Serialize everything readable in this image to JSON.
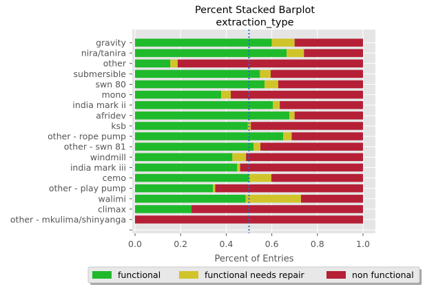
{
  "chart_data": {
    "type": "bar",
    "orientation": "horizontal",
    "stacked": true,
    "percent": true,
    "title": "Percent Stacked Barplot",
    "subtitle": "extraction_type",
    "xlabel": "Percent of Entries",
    "ylabel": "",
    "xlim": [
      0,
      1.05
    ],
    "xticks": [
      "0.0",
      "0.2",
      "0.4",
      "0.6",
      "0.8",
      "1.0"
    ],
    "xtick_values": [
      0.0,
      0.2,
      0.4,
      0.6,
      0.8,
      1.0
    ],
    "grid": true,
    "reference_line": {
      "x": 0.5,
      "style": "dotted",
      "color": "#1f6fd1"
    },
    "legend_position": "bottom",
    "categories": [
      "gravity",
      "nira/tanira",
      "other",
      "submersible",
      "swn 80",
      "mono",
      "india mark ii",
      "afridev",
      "ksb",
      "other - rope pump",
      "other - swn 81",
      "windmill",
      "india mark iii",
      "cemo",
      "other - play pump",
      "walimi",
      "climax",
      "other - mkulima/shinyanga",
      ""
    ],
    "series": [
      {
        "name": "functional",
        "color": "#1fba2b",
        "values": [
          0.6,
          0.665,
          0.155,
          0.548,
          0.568,
          0.378,
          0.605,
          0.677,
          0.495,
          0.65,
          0.52,
          0.427,
          0.448,
          0.5,
          0.342,
          0.485,
          0.248,
          0.0,
          0.0
        ]
      },
      {
        "name": "functional needs repair",
        "color": "#d0c42a",
        "values": [
          0.1,
          0.076,
          0.032,
          0.047,
          0.06,
          0.042,
          0.03,
          0.023,
          0.013,
          0.037,
          0.03,
          0.06,
          0.013,
          0.098,
          0.01,
          0.243,
          0.0,
          0.0,
          0.0
        ]
      },
      {
        "name": "non functional",
        "color": "#b52036",
        "values": [
          0.3,
          0.259,
          0.813,
          0.405,
          0.372,
          0.58,
          0.365,
          0.3,
          0.492,
          0.313,
          0.45,
          0.513,
          0.539,
          0.402,
          0.648,
          0.272,
          0.752,
          1.0,
          0.0
        ]
      }
    ]
  }
}
